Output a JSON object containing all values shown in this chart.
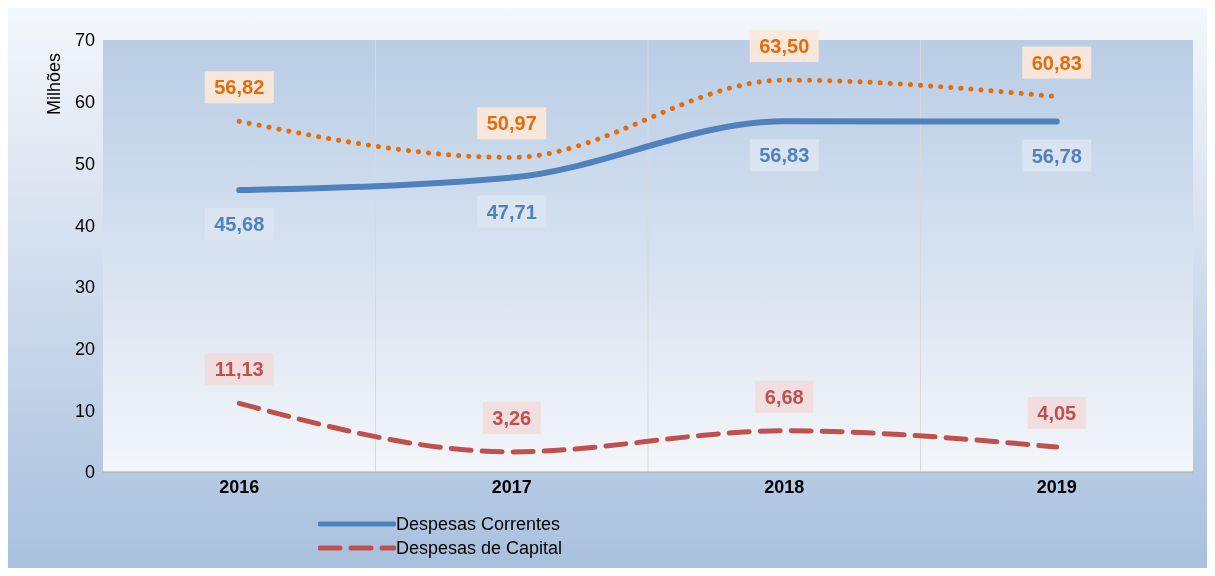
{
  "chart_data": {
    "type": "line",
    "ylabel": "Milhões",
    "categories": [
      "2016",
      "2017",
      "2018",
      "2019"
    ],
    "series": [
      {
        "name": "Despesas Correntes",
        "color": "#4f81bd",
        "line_style": "solid",
        "values": [
          45.68,
          47.71,
          56.83,
          56.78
        ],
        "value_labels": [
          "45,68",
          "47,71",
          "56,83",
          "56,78"
        ]
      },
      {
        "name": "Despesas de Capital",
        "color": "#c0504d",
        "line_style": "dashed",
        "values": [
          11.13,
          3.26,
          6.68,
          4.05
        ],
        "value_labels": [
          "11,13",
          "3,26",
          "6,68",
          "4,05"
        ]
      },
      {
        "color": "#e46c0a",
        "line_style": "dotted",
        "values": [
          56.82,
          50.97,
          63.5,
          60.83
        ],
        "value_labels": [
          "56,82",
          "50,97",
          "63,50",
          "60,83"
        ]
      }
    ],
    "ylim": [
      0,
      70
    ],
    "yticks": [
      0,
      10,
      20,
      30,
      40,
      50,
      60,
      70
    ],
    "grid": "x",
    "legend": "bottom",
    "marker": "none"
  }
}
